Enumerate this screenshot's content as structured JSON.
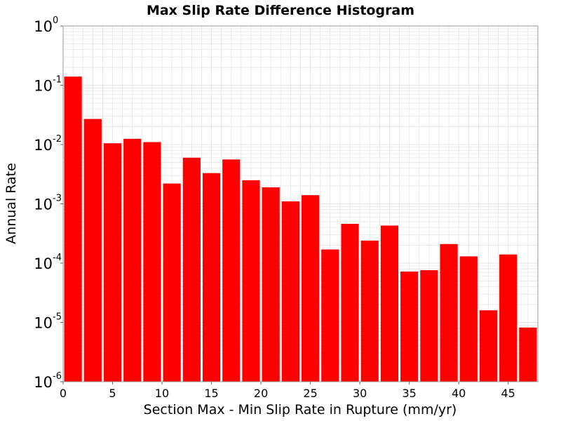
{
  "chart_data": {
    "type": "bar",
    "title": "Max Slip Rate Difference Histogram",
    "xlabel": "Section Max - Min Slip Rate in Rupture (mm/yr)",
    "ylabel": "Annual Rate",
    "y_scale": "log",
    "xlim": [
      0,
      48
    ],
    "ylim": [
      1e-06,
      1
    ],
    "grid": true,
    "bar_color": "#ff0000",
    "grid_color": "#e6e6e6",
    "bin_width": 2,
    "x_ticks": [
      0,
      5,
      10,
      15,
      20,
      25,
      30,
      35,
      40,
      45
    ],
    "x_tick_labels": [
      "0",
      "5",
      "10",
      "15",
      "20",
      "25",
      "30",
      "35",
      "40",
      "45"
    ],
    "y_ticks": [
      {
        "value": 1,
        "base": "10",
        "exp": "0"
      },
      {
        "value": 0.1,
        "base": "10",
        "exp": "-1"
      },
      {
        "value": 0.01,
        "base": "10",
        "exp": "-2"
      },
      {
        "value": 0.001,
        "base": "10",
        "exp": "-3"
      },
      {
        "value": 0.0001,
        "base": "10",
        "exp": "-4"
      },
      {
        "value": 1e-05,
        "base": "10",
        "exp": "-5"
      },
      {
        "value": 1e-06,
        "base": "10",
        "exp": "-6"
      }
    ],
    "bins": [
      {
        "x": 1,
        "y": 0.14
      },
      {
        "x": 3,
        "y": 0.027
      },
      {
        "x": 5,
        "y": 0.0105
      },
      {
        "x": 7,
        "y": 0.0125
      },
      {
        "x": 9,
        "y": 0.011
      },
      {
        "x": 11,
        "y": 0.0022
      },
      {
        "x": 13,
        "y": 0.006
      },
      {
        "x": 15,
        "y": 0.0033
      },
      {
        "x": 17,
        "y": 0.0056
      },
      {
        "x": 19,
        "y": 0.0025
      },
      {
        "x": 21,
        "y": 0.0019
      },
      {
        "x": 23,
        "y": 0.0011
      },
      {
        "x": 25,
        "y": 0.0014
      },
      {
        "x": 27,
        "y": 0.00017
      },
      {
        "x": 29,
        "y": 0.00046
      },
      {
        "x": 31,
        "y": 0.00024
      },
      {
        "x": 33,
        "y": 0.00043
      },
      {
        "x": 35,
        "y": 7.2e-05
      },
      {
        "x": 37,
        "y": 7.6e-05
      },
      {
        "x": 39,
        "y": 0.00021
      },
      {
        "x": 41,
        "y": 0.00013
      },
      {
        "x": 43,
        "y": 1.6e-05
      },
      {
        "x": 45,
        "y": 0.00014
      },
      {
        "x": 47,
        "y": 8.2e-06
      }
    ]
  }
}
